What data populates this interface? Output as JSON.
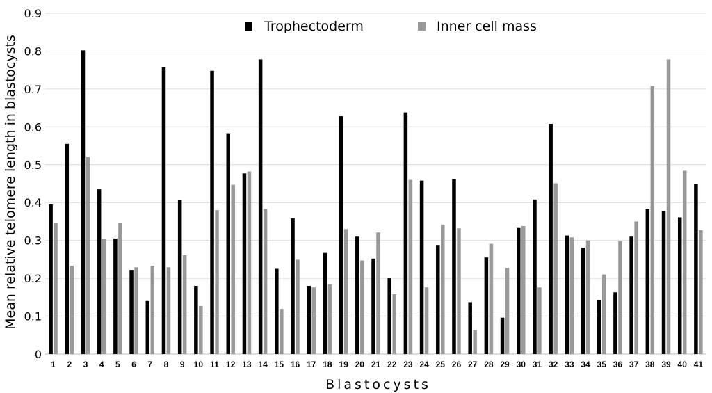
{
  "chart_data": {
    "type": "bar",
    "title": "",
    "xlabel": "Blastocysts",
    "ylabel": "Mean relative telomere length in blastocysts",
    "ylim": [
      0,
      0.9
    ],
    "yticks": [
      "0",
      "0.1",
      "0.2",
      "0.3",
      "0.4",
      "0.5",
      "0.6",
      "0.7",
      "0.8",
      "0.9"
    ],
    "grid": true,
    "legend_position": "top",
    "categories": [
      "1",
      "2",
      "3",
      "4",
      "5",
      "6",
      "7",
      "8",
      "9",
      "10",
      "11",
      "12",
      "13",
      "14",
      "15",
      "16",
      "17",
      "18",
      "19",
      "20",
      "21",
      "22",
      "23",
      "24",
      "25",
      "26",
      "27",
      "28",
      "29",
      "30",
      "31",
      "32",
      "33",
      "34",
      "35",
      "36",
      "37",
      "38",
      "39",
      "40",
      "41"
    ],
    "series": [
      {
        "name": "Trophectoderm",
        "color": "#000000",
        "values": [
          0.395,
          0.555,
          0.802,
          0.435,
          0.305,
          0.222,
          0.14,
          0.757,
          0.406,
          0.18,
          0.748,
          0.583,
          0.477,
          0.778,
          0.225,
          0.358,
          0.18,
          0.267,
          0.628,
          0.31,
          0.252,
          0.2,
          0.638,
          0.458,
          0.288,
          0.462,
          0.137,
          0.255,
          0.096,
          0.333,
          0.408,
          0.608,
          0.313,
          0.281,
          0.142,
          0.163,
          0.31,
          0.383,
          0.378,
          0.361,
          0.45
        ]
      },
      {
        "name": "Inner cell mass",
        "color": "#999999",
        "values": [
          0.347,
          0.233,
          0.52,
          0.303,
          0.347,
          0.229,
          0.233,
          0.229,
          0.261,
          0.127,
          0.38,
          0.447,
          0.482,
          0.383,
          0.119,
          0.249,
          0.176,
          0.184,
          0.33,
          0.247,
          0.321,
          0.158,
          0.46,
          0.176,
          0.342,
          0.332,
          0.063,
          0.291,
          0.227,
          0.338,
          0.176,
          0.451,
          0.308,
          0.3,
          0.21,
          0.298,
          0.35,
          0.708,
          0.778,
          0.484,
          0.327
        ]
      }
    ]
  }
}
